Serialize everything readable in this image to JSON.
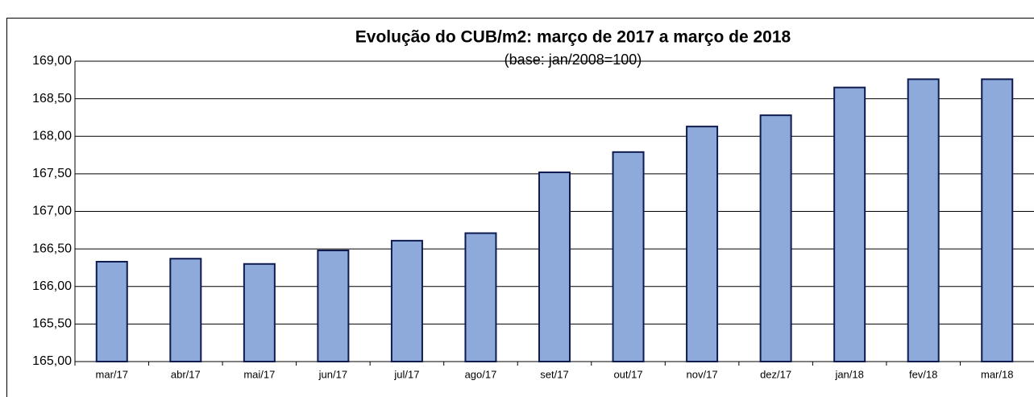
{
  "chart_data": {
    "type": "bar",
    "title": "Evolução do CUB/m2: março de 2017 a março de 2018",
    "subtitle": "(base: jan/2008=100)",
    "categories": [
      "mar/17",
      "abr/17",
      "mai/17",
      "jun/17",
      "jul/17",
      "ago/17",
      "set/17",
      "out/17",
      "nov/17",
      "dez/17",
      "jan/18",
      "fev/18",
      "mar/18"
    ],
    "values": [
      166.33,
      166.37,
      166.3,
      166.48,
      166.61,
      166.71,
      167.52,
      167.79,
      168.13,
      168.28,
      168.65,
      168.76,
      168.76
    ],
    "color": "#8eaadb",
    "ylim": [
      165,
      169
    ],
    "yticks": [
      {
        "value": 165,
        "label": "165,00"
      },
      {
        "value": 165.5,
        "label": "165,50"
      },
      {
        "value": 166,
        "label": "166,00"
      },
      {
        "value": 166.5,
        "label": "166,50"
      },
      {
        "value": 167,
        "label": "167,00"
      },
      {
        "value": 167.5,
        "label": "167,50"
      },
      {
        "value": 168,
        "label": "168,00"
      },
      {
        "value": 168.5,
        "label": "168,50"
      },
      {
        "value": 169,
        "label": "169,00"
      }
    ],
    "grid": true
  }
}
